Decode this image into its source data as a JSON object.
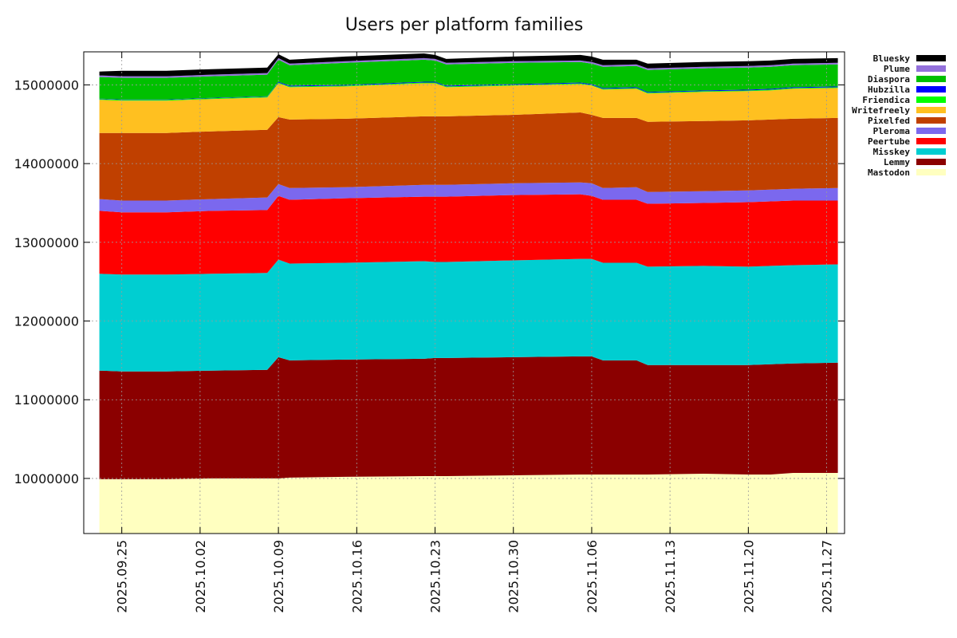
{
  "chart_data": {
    "type": "area",
    "stacked": true,
    "title": "Users per platform families",
    "xlabel": "",
    "ylabel": "",
    "xlim": [
      -3.4,
      64.6
    ],
    "ylim": [
      9300000,
      15420000
    ],
    "grid": true,
    "legend_position": "right",
    "x_ticks": [
      {
        "x": 0,
        "label": "2025.09.25"
      },
      {
        "x": 7,
        "label": "2025.10.02"
      },
      {
        "x": 14,
        "label": "2025.10.09"
      },
      {
        "x": 21,
        "label": "2025.10.16"
      },
      {
        "x": 28,
        "label": "2025.10.23"
      },
      {
        "x": 35,
        "label": "2025.10.30"
      },
      {
        "x": 42,
        "label": "2025.11.06"
      },
      {
        "x": 49,
        "label": "2025.11.13"
      },
      {
        "x": 56,
        "label": "2025.11.20"
      },
      {
        "x": 63,
        "label": "2025.11.27"
      }
    ],
    "y_ticks": [
      {
        "y": 10000000,
        "label": "10000000"
      },
      {
        "y": 11000000,
        "label": "11000000"
      },
      {
        "y": 12000000,
        "label": "12000000"
      },
      {
        "y": 13000000,
        "label": "13000000"
      },
      {
        "y": 14000000,
        "label": "14000000"
      },
      {
        "y": 15000000,
        "label": "15000000"
      }
    ],
    "x": [
      -2,
      0,
      4,
      8,
      13,
      14,
      15,
      20,
      27,
      28,
      29,
      35,
      41,
      42,
      43,
      46,
      47,
      52,
      56,
      58,
      60,
      64
    ],
    "series": [
      {
        "name": "Mastodon",
        "color": "#ffffc0",
        "totals": [
          9990000,
          9990000,
          9990000,
          10000000,
          10000000,
          10000000,
          10010000,
          10020000,
          10030000,
          10030000,
          10030000,
          10040000,
          10050000,
          10050000,
          10050000,
          10050000,
          10050000,
          10060000,
          10050000,
          10050000,
          10070000,
          10070000
        ]
      },
      {
        "name": "Lemmy",
        "color": "#8b0000",
        "totals": [
          11370000,
          11360000,
          11360000,
          11370000,
          11380000,
          11540000,
          11500000,
          11510000,
          11520000,
          11530000,
          11530000,
          11540000,
          11550000,
          11550000,
          11500000,
          11500000,
          11440000,
          11440000,
          11440000,
          11450000,
          11460000,
          11470000
        ]
      },
      {
        "name": "Misskey",
        "color": "#00ced1",
        "totals": [
          12600000,
          12590000,
          12590000,
          12600000,
          12610000,
          12780000,
          12730000,
          12740000,
          12760000,
          12750000,
          12750000,
          12770000,
          12790000,
          12790000,
          12740000,
          12740000,
          12690000,
          12700000,
          12690000,
          12700000,
          12710000,
          12720000
        ]
      },
      {
        "name": "Peertube",
        "color": "#ff0000",
        "totals": [
          13400000,
          13380000,
          13380000,
          13400000,
          13410000,
          13590000,
          13540000,
          13560000,
          13580000,
          13580000,
          13580000,
          13600000,
          13610000,
          13590000,
          13540000,
          13540000,
          13490000,
          13500000,
          13510000,
          13520000,
          13530000,
          13530000
        ]
      },
      {
        "name": "Pleroma",
        "color": "#7b68ee",
        "totals": [
          13550000,
          13530000,
          13530000,
          13550000,
          13570000,
          13740000,
          13690000,
          13700000,
          13730000,
          13730000,
          13730000,
          13750000,
          13760000,
          13750000,
          13690000,
          13700000,
          13640000,
          13650000,
          13660000,
          13670000,
          13680000,
          13690000
        ]
      },
      {
        "name": "Pixelfed",
        "color": "#c04000",
        "totals": [
          14390000,
          14390000,
          14390000,
          14410000,
          14430000,
          14590000,
          14560000,
          14570000,
          14600000,
          14600000,
          14600000,
          14620000,
          14650000,
          14620000,
          14580000,
          14580000,
          14530000,
          14540000,
          14550000,
          14560000,
          14570000,
          14580000
        ]
      },
      {
        "name": "Writefreely",
        "color": "#ffc020",
        "totals": [
          14810000,
          14800000,
          14800000,
          14820000,
          14840000,
          15020000,
          14970000,
          14980000,
          15020000,
          15020000,
          14970000,
          14990000,
          15010000,
          14990000,
          14940000,
          14950000,
          14890000,
          14910000,
          14920000,
          14930000,
          14950000,
          14960000
        ]
      },
      {
        "name": "Friendica",
        "color": "#00ff00",
        "totals": [
          14820000,
          14810000,
          14810000,
          14830000,
          14850000,
          15030000,
          14980000,
          14990000,
          15030000,
          15030000,
          14980000,
          15000000,
          15020000,
          15000000,
          14950000,
          14960000,
          14900000,
          14920000,
          14930000,
          14940000,
          14960000,
          14970000
        ]
      },
      {
        "name": "Hubzilla",
        "color": "#0000ff",
        "totals": [
          14825000,
          14815000,
          14815000,
          14835000,
          14855000,
          15040000,
          14990000,
          15000000,
          15040000,
          15040000,
          14990000,
          15010000,
          15030000,
          15010000,
          14960000,
          14970000,
          14910000,
          14930000,
          14940000,
          14950000,
          14970000,
          14980000
        ]
      },
      {
        "name": "Diaspora",
        "color": "#00c000",
        "totals": [
          15100000,
          15090000,
          15090000,
          15110000,
          15130000,
          15320000,
          15250000,
          15280000,
          15320000,
          15310000,
          15260000,
          15280000,
          15290000,
          15270000,
          15230000,
          15240000,
          15190000,
          15210000,
          15220000,
          15230000,
          15250000,
          15260000
        ]
      },
      {
        "name": "Plume",
        "color": "#9370db",
        "totals": [
          15120000,
          15110000,
          15110000,
          15130000,
          15150000,
          15340000,
          15270000,
          15300000,
          15340000,
          15330000,
          15280000,
          15300000,
          15310000,
          15290000,
          15250000,
          15260000,
          15210000,
          15230000,
          15240000,
          15250000,
          15270000,
          15280000
        ]
      },
      {
        "name": "Bluesky",
        "color": "#000000",
        "totals": [
          15170000,
          15180000,
          15180000,
          15200000,
          15220000,
          15390000,
          15320000,
          15360000,
          15400000,
          15380000,
          15330000,
          15360000,
          15380000,
          15360000,
          15320000,
          15320000,
          15270000,
          15290000,
          15300000,
          15310000,
          15330000,
          15340000
        ]
      }
    ]
  }
}
